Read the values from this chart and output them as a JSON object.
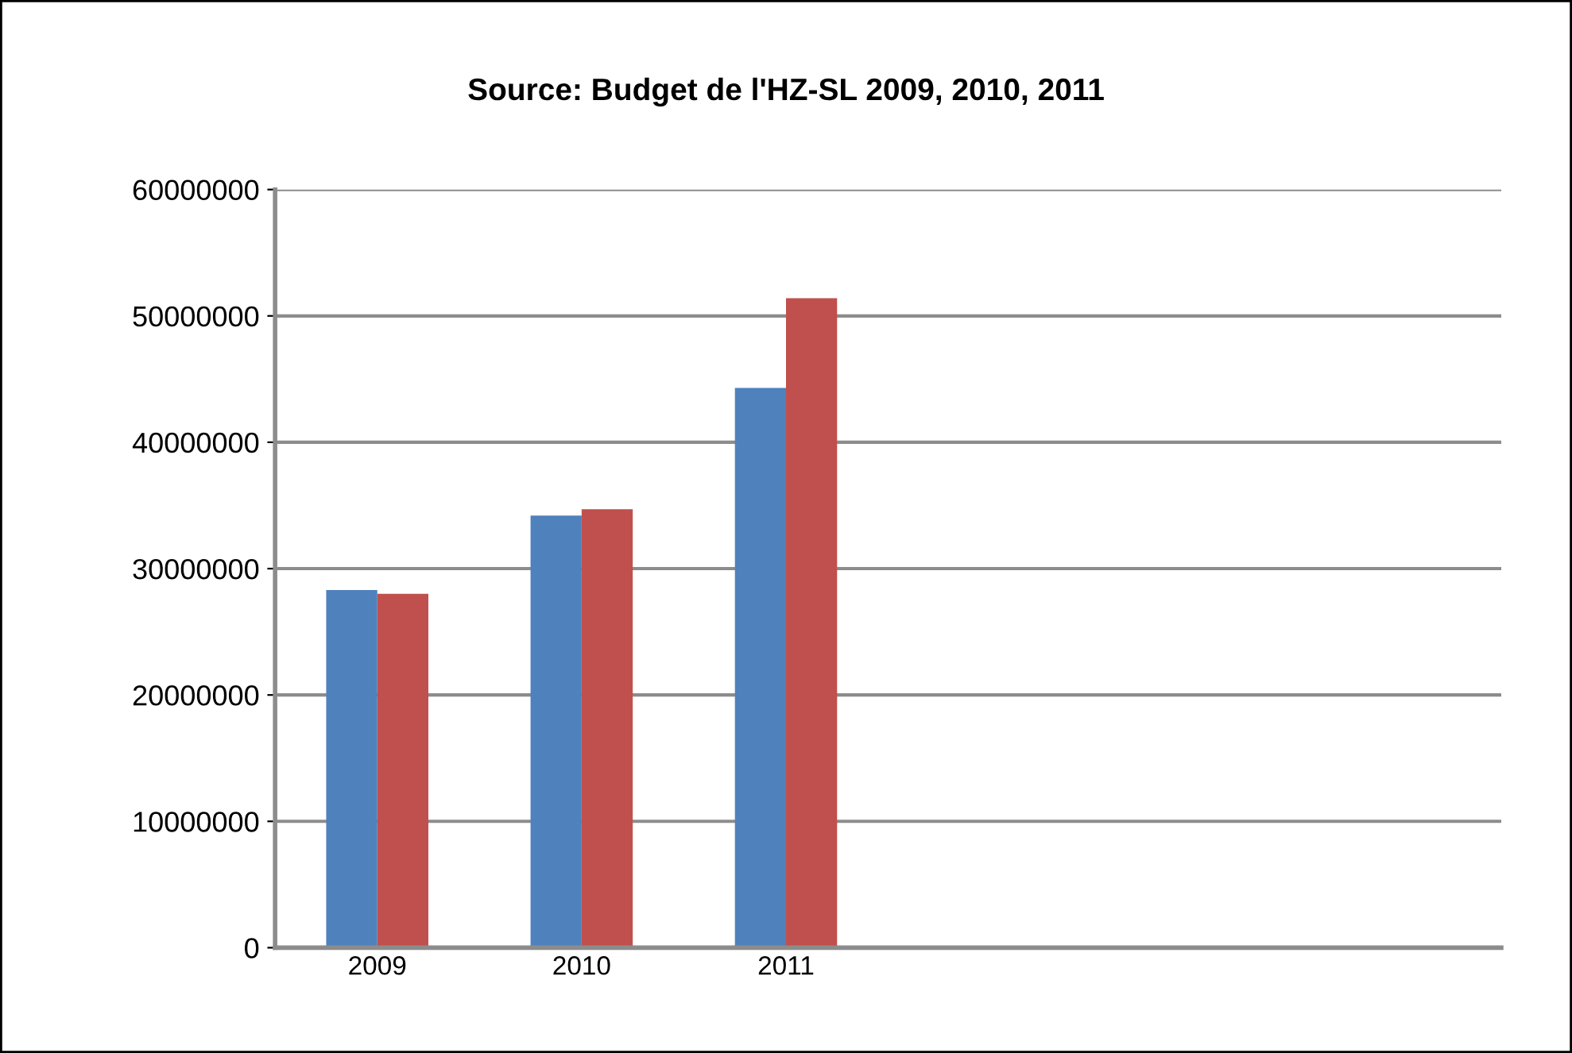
{
  "chart_data": {
    "type": "bar",
    "title": "Source: Budget de l'HZ-SL 2009, 2010, 2011",
    "categories": [
      "2009",
      "2010",
      "2011",
      null,
      null,
      null
    ],
    "series": [
      {
        "color": "#4f81bd",
        "values": [
          28300000,
          34200000,
          44300000,
          null,
          null,
          null
        ]
      },
      {
        "color": "#c0504d",
        "values": [
          28000000,
          34700000,
          51400000,
          null,
          null,
          null
        ]
      }
    ],
    "ylim": [
      0,
      60000000
    ],
    "yticks": [
      0,
      10000000,
      20000000,
      30000000,
      40000000,
      50000000,
      60000000
    ],
    "grid": "y",
    "legend": false
  }
}
